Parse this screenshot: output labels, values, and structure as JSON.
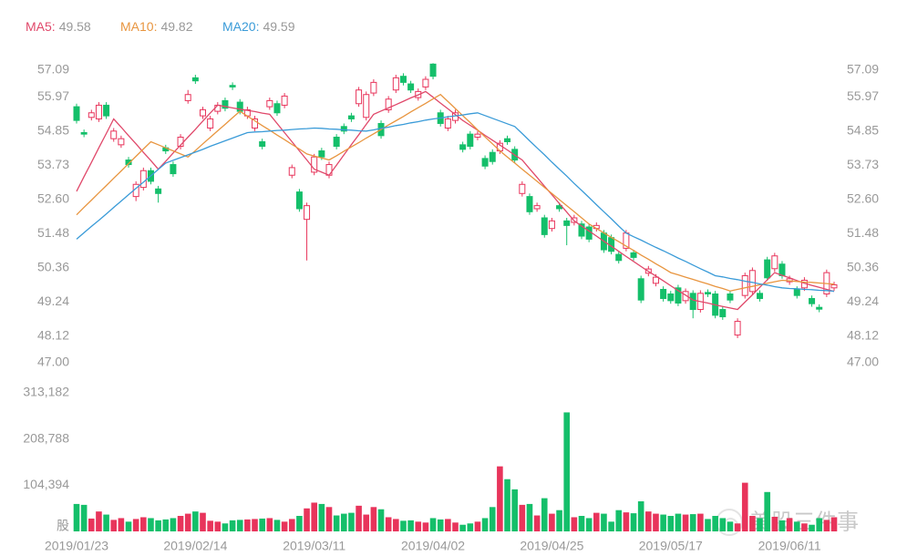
{
  "chart_data": {
    "type": "candlestick",
    "categories": [
      "2019/01/23",
      null,
      null,
      null,
      null,
      null,
      null,
      null,
      null,
      null,
      null,
      null,
      null,
      null,
      null,
      null,
      "2019/02/14",
      null,
      null,
      null,
      null,
      null,
      null,
      null,
      null,
      null,
      null,
      null,
      null,
      null,
      null,
      null,
      "2019/03/11",
      null,
      null,
      null,
      null,
      null,
      null,
      null,
      null,
      null,
      null,
      null,
      null,
      null,
      null,
      null,
      "2019/04/02",
      null,
      null,
      null,
      null,
      null,
      null,
      null,
      null,
      null,
      null,
      null,
      null,
      null,
      null,
      null,
      "2019/04/25",
      null,
      null,
      null,
      null,
      null,
      null,
      null,
      null,
      null,
      null,
      null,
      null,
      null,
      null,
      null,
      "2019/05/17",
      null,
      null,
      null,
      null,
      null,
      null,
      null,
      null,
      null,
      null,
      null,
      null,
      null,
      null,
      null,
      "2019/06/11",
      null,
      null,
      null,
      null,
      null,
      null
    ],
    "open": [
      55.65,
      54.8,
      55.3,
      55.25,
      55.7,
      54.6,
      54.4,
      53.9,
      52.7,
      53.0,
      53.55,
      52.95,
      54.3,
      53.75,
      54.35,
      55.85,
      56.6,
      55.35,
      54.95,
      55.5,
      55.85,
      56.35,
      55.8,
      55.35,
      54.95,
      54.5,
      55.65,
      55.75,
      55.7,
      53.4,
      52.85,
      51.95,
      53.5,
      54.2,
      53.4,
      54.65,
      55.0,
      55.35,
      55.75,
      55.3,
      56.1,
      55.1,
      55.55,
      56.2,
      56.65,
      56.4,
      55.95,
      56.3,
      57.05,
      55.45,
      54.95,
      55.2,
      54.4,
      54.75,
      54.65,
      53.95,
      54.15,
      54.2,
      54.6,
      54.25,
      52.8,
      52.7,
      52.3,
      52.0,
      51.65,
      52.4,
      51.9,
      51.85,
      51.8,
      51.7,
      51.65,
      51.5,
      51.35,
      50.8,
      51.0,
      50.85,
      50.0,
      50.18,
      49.85,
      49.65,
      49.5,
      49.7,
      49.28,
      49.52,
      48.99,
      49.55,
      49.5,
      48.99,
      49.5,
      48.15,
      49.45,
      49.58,
      49.52,
      50.62,
      50.33,
      50.48,
      49.9,
      49.65,
      49.7,
      49.35,
      49.06,
      49.5,
      49.7
    ],
    "high": [
      55.75,
      54.9,
      55.55,
      55.8,
      55.8,
      54.95,
      54.7,
      54.0,
      53.2,
      53.65,
      53.65,
      53.05,
      54.4,
      53.85,
      54.75,
      56.2,
      56.7,
      55.65,
      55.35,
      55.8,
      55.95,
      56.45,
      55.9,
      55.65,
      55.35,
      54.6,
      55.95,
      55.85,
      56.1,
      53.75,
      52.95,
      52.5,
      54.1,
      54.3,
      53.85,
      54.75,
      55.1,
      55.45,
      56.3,
      56.15,
      56.55,
      55.2,
      56.0,
      56.7,
      56.75,
      56.5,
      56.25,
      56.65,
      57.08,
      55.55,
      55.35,
      55.55,
      54.5,
      54.85,
      54.85,
      54.05,
      54.25,
      54.55,
      54.7,
      54.35,
      53.2,
      52.8,
      52.5,
      52.1,
      52.0,
      52.5,
      52.0,
      52.1,
      51.9,
      51.8,
      51.85,
      51.6,
      51.45,
      50.9,
      51.6,
      50.95,
      50.1,
      50.42,
      50.15,
      49.75,
      49.6,
      49.8,
      49.68,
      49.62,
      49.62,
      49.65,
      49.6,
      49.09,
      49.6,
      48.7,
      50.2,
      50.37,
      49.62,
      50.72,
      50.85,
      50.58,
      50.1,
      49.75,
      50.05,
      49.45,
      49.16,
      50.3,
      49.9
    ],
    "low": [
      55.1,
      54.65,
      55.2,
      55.15,
      55.25,
      54.5,
      54.3,
      53.65,
      52.55,
      52.9,
      53.1,
      52.5,
      54.1,
      53.35,
      54.25,
      55.75,
      56.4,
      55.25,
      54.85,
      55.4,
      55.5,
      56.2,
      55.4,
      55.25,
      54.85,
      54.25,
      55.55,
      55.35,
      55.6,
      53.3,
      52.2,
      50.6,
      53.4,
      53.9,
      53.3,
      54.25,
      54.75,
      55.15,
      55.65,
      55.2,
      56.0,
      54.6,
      55.45,
      56.1,
      56.35,
      56.1,
      55.85,
      56.2,
      56.55,
      55.0,
      54.85,
      55.1,
      54.15,
      54.25,
      54.55,
      53.6,
      53.75,
      54.1,
      54.4,
      53.8,
      52.7,
      52.1,
      52.2,
      51.35,
      51.55,
      52.2,
      51.1,
      51.75,
      51.3,
      51.2,
      51.55,
      50.85,
      50.8,
      50.5,
      50.9,
      50.6,
      49.2,
      50.08,
      49.75,
      49.25,
      49.18,
      49.1,
      49.18,
      48.7,
      48.89,
      49.4,
      48.7,
      48.65,
      49.2,
      48.05,
      49.35,
      49.48,
      49.25,
      49.93,
      50.23,
      50.0,
      49.8,
      49.35,
      49.6,
      49.08,
      48.9,
      49.4,
      49.6
    ],
    "close": [
      55.2,
      54.75,
      55.45,
      55.7,
      55.35,
      54.85,
      54.6,
      53.75,
      53.1,
      53.55,
      53.2,
      52.8,
      54.2,
      53.45,
      54.65,
      56.05,
      56.5,
      55.55,
      55.25,
      55.7,
      55.6,
      56.3,
      55.5,
      55.55,
      55.25,
      54.35,
      55.85,
      55.45,
      56.0,
      53.65,
      52.3,
      52.4,
      54.0,
      54.0,
      53.75,
      54.35,
      54.85,
      55.25,
      56.2,
      56.05,
      56.45,
      54.7,
      55.9,
      56.6,
      56.45,
      56.2,
      56.15,
      56.55,
      56.65,
      55.1,
      55.25,
      55.45,
      54.25,
      54.35,
      54.75,
      53.7,
      53.85,
      54.45,
      54.5,
      53.9,
      53.1,
      52.2,
      52.4,
      51.45,
      51.9,
      52.3,
      51.75,
      52.0,
      51.4,
      51.3,
      51.75,
      50.95,
      50.9,
      50.6,
      51.5,
      50.7,
      49.3,
      50.32,
      50.05,
      49.35,
      49.28,
      49.2,
      49.58,
      48.99,
      49.52,
      49.5,
      48.8,
      48.75,
      49.3,
      48.6,
      50.1,
      50.27,
      49.35,
      50.03,
      50.75,
      50.1,
      50.0,
      49.45,
      49.95,
      49.18,
      49.0,
      50.2,
      49.8
    ],
    "series": [
      {
        "name": "MA5:",
        "color": "#e0486a",
        "values": [
          52.87,
          53.35,
          53.82,
          54.3,
          54.77,
          55.25,
          54.98,
          54.7,
          54.43,
          54.15,
          53.88,
          53.6,
          53.86,
          54.13,
          54.39,
          54.65,
          54.91,
          55.18,
          55.44,
          55.7,
          55.66,
          55.61,
          55.57,
          55.53,
          55.49,
          55.44,
          55.4,
          55.1,
          54.8,
          54.5,
          54.2,
          53.9,
          53.6,
          53.5,
          53.4,
          53.73,
          54.07,
          54.4,
          54.73,
          55.07,
          55.4,
          55.51,
          55.61,
          55.72,
          55.83,
          55.94,
          56.04,
          56.15,
          55.96,
          55.77,
          55.58,
          55.39,
          55.2,
          55.04,
          54.88,
          54.71,
          54.55,
          54.39,
          54.23,
          54.06,
          53.9,
          53.61,
          53.33,
          53.04,
          52.76,
          52.47,
          52.19,
          51.9,
          51.73,
          51.57,
          51.4,
          51.23,
          51.07,
          50.9,
          50.73,
          50.57,
          50.4,
          50.24,
          50.09,
          49.93,
          49.77,
          49.61,
          49.46,
          49.3,
          49.25,
          49.2,
          49.14,
          49.09,
          49.04,
          48.99,
          49.23,
          49.47,
          49.72,
          49.96,
          50.2,
          50.11,
          50.03,
          49.94,
          49.85,
          49.78,
          49.72,
          49.65,
          49.58
        ]
      },
      {
        "name": "MA10:",
        "color": "#e8953f",
        "values": [
          52.1,
          52.34,
          52.58,
          52.82,
          53.06,
          53.3,
          53.54,
          53.78,
          54.02,
          54.26,
          54.5,
          54.4,
          54.3,
          54.2,
          54.1,
          54.0,
          54.21,
          54.43,
          54.64,
          54.86,
          55.07,
          55.29,
          55.5,
          55.34,
          55.19,
          55.03,
          54.88,
          54.72,
          54.57,
          54.41,
          54.26,
          54.1,
          54.03,
          53.97,
          53.9,
          54.04,
          54.19,
          54.33,
          54.47,
          54.62,
          54.76,
          54.9,
          55.05,
          55.19,
          55.33,
          55.48,
          55.62,
          55.76,
          55.91,
          56.05,
          55.82,
          55.59,
          55.36,
          55.13,
          54.89,
          54.66,
          54.43,
          54.2,
          54.0,
          53.8,
          53.6,
          53.4,
          53.2,
          53.0,
          52.8,
          52.6,
          52.4,
          52.2,
          52.0,
          51.8,
          51.65,
          51.51,
          51.36,
          51.22,
          51.07,
          50.93,
          50.78,
          50.64,
          50.49,
          50.35,
          50.2,
          50.13,
          50.05,
          49.98,
          49.9,
          49.83,
          49.75,
          49.68,
          49.6,
          49.65,
          49.7,
          49.75,
          49.8,
          49.85,
          49.9,
          49.95,
          49.93,
          49.91,
          49.89,
          49.88,
          49.86,
          49.84,
          49.82
        ]
      },
      {
        "name": "MA20:",
        "color": "#3a9bd8",
        "values": [
          51.3,
          51.51,
          51.72,
          51.92,
          52.13,
          52.34,
          52.55,
          52.76,
          52.97,
          53.17,
          53.38,
          53.59,
          53.8,
          53.89,
          53.98,
          54.07,
          54.16,
          54.25,
          54.35,
          54.44,
          54.53,
          54.62,
          54.71,
          54.8,
          54.82,
          54.83,
          54.85,
          54.87,
          54.88,
          54.9,
          54.92,
          54.93,
          54.95,
          54.94,
          54.92,
          54.91,
          54.89,
          54.88,
          54.86,
          54.85,
          54.89,
          54.94,
          54.98,
          55.03,
          55.07,
          55.12,
          55.16,
          55.21,
          55.25,
          55.28,
          55.32,
          55.35,
          55.38,
          55.42,
          55.45,
          55.36,
          55.27,
          55.18,
          55.09,
          55.0,
          54.77,
          54.53,
          54.3,
          54.07,
          53.83,
          53.6,
          53.37,
          53.13,
          52.9,
          52.67,
          52.43,
          52.2,
          51.97,
          51.73,
          51.5,
          51.38,
          51.27,
          51.15,
          51.03,
          50.92,
          50.8,
          50.68,
          50.57,
          50.45,
          50.33,
          50.22,
          50.1,
          50.06,
          50.01,
          49.97,
          49.92,
          49.88,
          49.83,
          49.79,
          49.74,
          49.7,
          49.68,
          49.67,
          49.65,
          49.64,
          49.62,
          49.61,
          49.59
        ]
      }
    ],
    "up_color": "#e8345b",
    "down_color": "#14bf6a",
    "ylim": [
      47,
      57.09
    ],
    "yticks": [
      57.09,
      55.97,
      54.85,
      53.73,
      {
        "value": 52.6,
        "label": "52.60"
      },
      51.48,
      50.36,
      49.24,
      48.12,
      {
        "value": 47,
        "label": "47.00"
      }
    ],
    "grid": false,
    "volume": {
      "type": "bar",
      "values": [
        62000,
        60000,
        29000,
        45000,
        38000,
        26000,
        30000,
        22000,
        28000,
        32000,
        30000,
        25000,
        27000,
        30000,
        35000,
        40000,
        45000,
        42000,
        24000,
        22000,
        18000,
        25000,
        26000,
        27000,
        28000,
        29000,
        30000,
        26000,
        22000,
        28000,
        35000,
        52000,
        65000,
        62000,
        55000,
        36000,
        40000,
        42000,
        58000,
        38000,
        55000,
        50000,
        32000,
        28000,
        24000,
        25000,
        22000,
        20000,
        30000,
        27000,
        28000,
        20000,
        15000,
        18000,
        22000,
        30000,
        55000,
        147000,
        118000,
        95000,
        60000,
        62000,
        36000,
        75000,
        40000,
        48000,
        269000,
        32000,
        35000,
        30000,
        42000,
        40000,
        22000,
        48000,
        43000,
        41000,
        68000,
        45000,
        40000,
        38000,
        35000,
        40000,
        38000,
        39000,
        40000,
        28000,
        35000,
        30000,
        22000,
        18000,
        110000,
        35000,
        30000,
        89000,
        33000,
        25000,
        30000,
        22000,
        18000,
        15000,
        30000,
        26000,
        32000
      ],
      "ylim": [
        0,
        313182
      ],
      "yticks": [
        {
          "value": 0,
          "label": "股"
        },
        {
          "value": 104394,
          "label": "104,394"
        },
        {
          "value": 208788,
          "label": "208,788"
        },
        {
          "value": 313182,
          "label": "313,182"
        }
      ]
    },
    "watermark": "美股三件事"
  }
}
